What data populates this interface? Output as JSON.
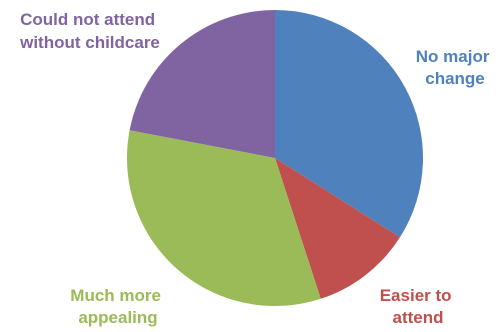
{
  "chart_data": {
    "type": "pie",
    "categories": [
      "No major change",
      "Easier to attend",
      "Much more appealing",
      "Could not attend without childcare"
    ],
    "values": [
      34,
      11,
      33,
      22
    ],
    "colors": [
      "#4F81BD",
      "#C0504D",
      "#9BBB59",
      "#8064A2"
    ],
    "start_angle_deg": 0,
    "direction": "clockwise",
    "labels": [
      {
        "line1": "No major",
        "line2": "change"
      },
      {
        "line1": "Easier to",
        "line2": "attend"
      },
      {
        "line1": "Much more",
        "line2": "appealing"
      },
      {
        "line1": "Could not attend",
        "line2": "without childcare"
      }
    ],
    "legend": "none"
  }
}
